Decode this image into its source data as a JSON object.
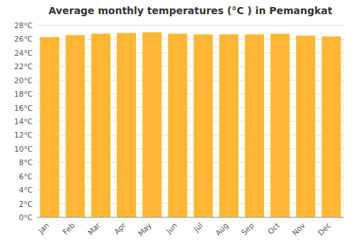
{
  "chart_data": {
    "type": "bar",
    "title": "Average monthly temperatures (°C ) in Pemangkat",
    "categories": [
      "Jan",
      "Feb",
      "Mar",
      "Apr",
      "May",
      "Jun",
      "Jul",
      "Aug",
      "Sep",
      "Oct",
      "Nov",
      "Dec"
    ],
    "values": [
      26.3,
      26.6,
      26.8,
      26.9,
      27.0,
      26.8,
      26.7,
      26.7,
      26.7,
      26.8,
      26.5,
      26.4
    ],
    "color": "#FFB733",
    "ylim": [
      0,
      28
    ],
    "yticks": [
      {
        "value": 0,
        "label": "0°C"
      },
      {
        "value": 2,
        "label": "2°C"
      },
      {
        "value": 4,
        "label": "4°C"
      },
      {
        "value": 6,
        "label": "6°C"
      },
      {
        "value": 8,
        "label": "8°C"
      },
      {
        "value": 10,
        "label": "10°C"
      },
      {
        "value": 12,
        "label": "12°C"
      },
      {
        "value": 14,
        "label": "14°C"
      },
      {
        "value": 16,
        "label": "16°C"
      },
      {
        "value": 18,
        "label": "18°C"
      },
      {
        "value": 20,
        "label": "20°C"
      },
      {
        "value": 22,
        "label": "22°C"
      },
      {
        "value": 24,
        "label": "24°C"
      },
      {
        "value": 26,
        "label": "26°C"
      },
      {
        "value": 28,
        "label": "28°C"
      }
    ],
    "grid": true
  }
}
